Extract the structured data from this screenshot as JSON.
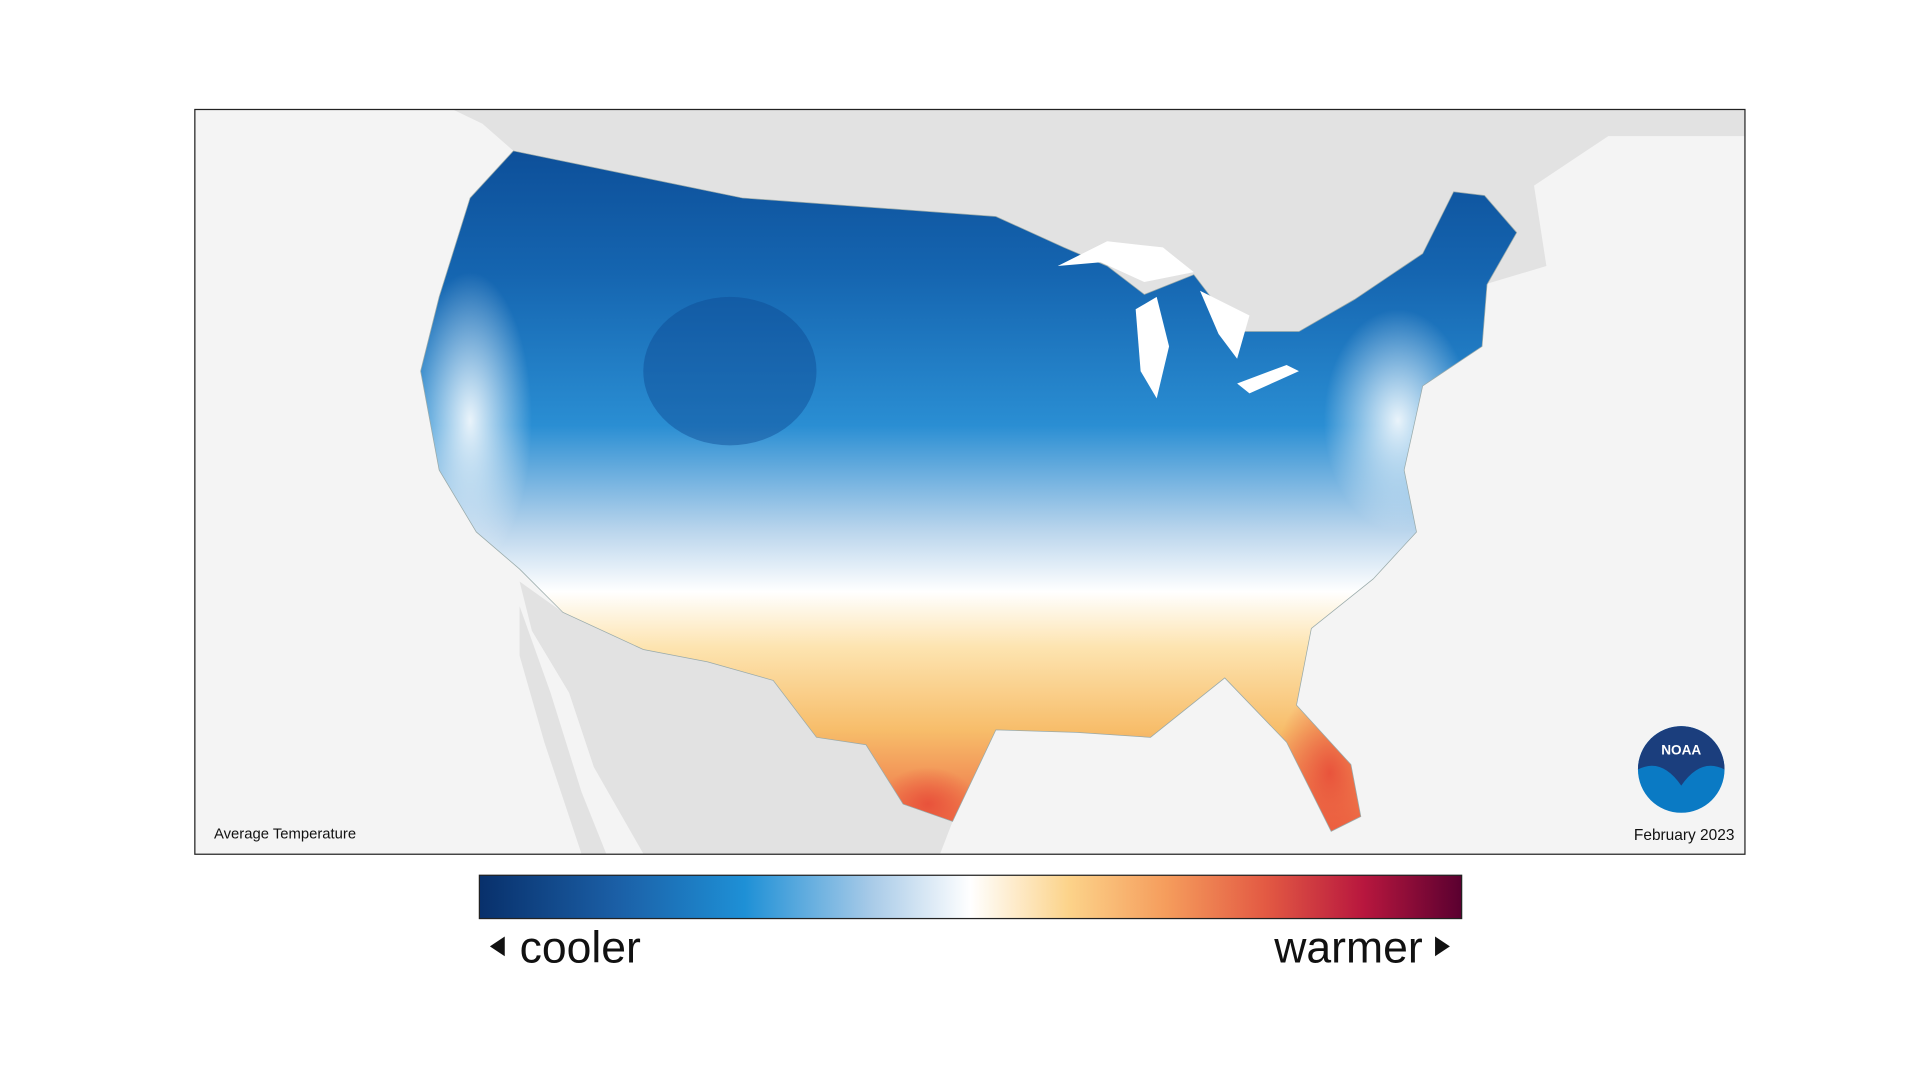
{
  "map": {
    "label": "Average Temperature",
    "date": "February 2023",
    "logo": "NOAA"
  },
  "legend": {
    "low_label": "cooler",
    "high_label": "warmer"
  }
}
